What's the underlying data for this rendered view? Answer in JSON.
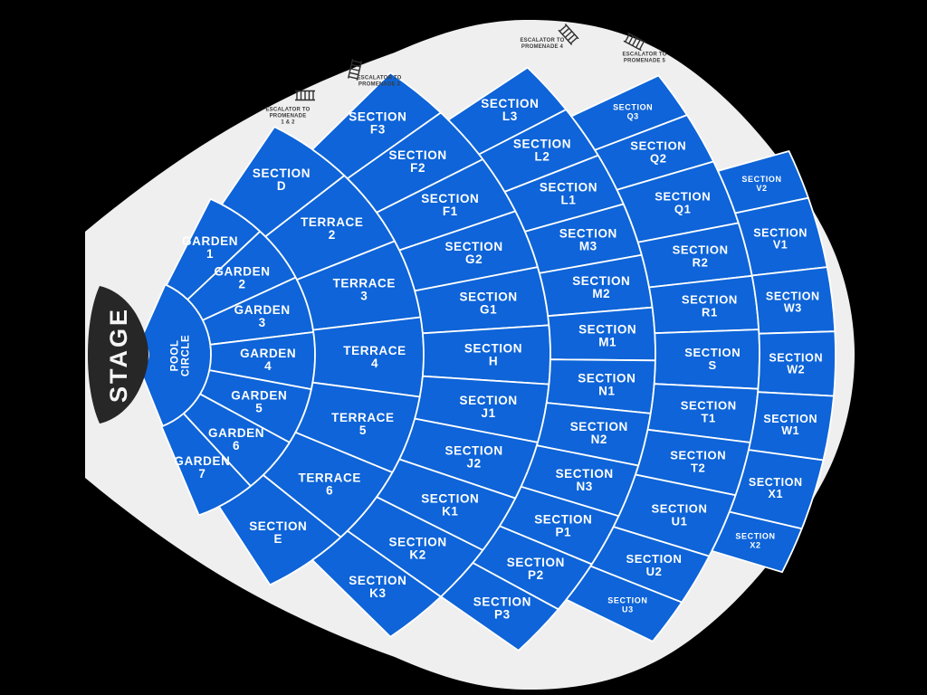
{
  "venue": {
    "stage_label": "STAGE",
    "colors": {
      "background": "#000000",
      "footprint": "#efefef",
      "section_fill": "#0e64d8",
      "section_line": "#ffffff",
      "stage_fill": "#272727",
      "stage_text": "#f5f5f5",
      "label_text": "#ffffff",
      "escalator_text": "#3c3c3c",
      "escalator_icon": "#2e2e2e"
    }
  },
  "escalators": [
    {
      "id": "promenade-1-2",
      "lines": [
        "ESCALATOR TO",
        "PROMENADE",
        "1 & 2"
      ]
    },
    {
      "id": "promenade-3",
      "lines": [
        "ESCALATOR TO",
        "PROMENADE 3"
      ]
    },
    {
      "id": "promenade-4",
      "lines": [
        "ESCALATOR TO",
        "PROMENADE 4"
      ]
    },
    {
      "id": "promenade-5",
      "lines": [
        "ESCALATOR TO",
        "PROMENADE 5"
      ]
    }
  ],
  "rings": [
    {
      "name": "pool",
      "sections": [
        {
          "id": "pool-circle",
          "lines": [
            "POOL",
            "CIRCLE"
          ]
        }
      ]
    },
    {
      "name": "garden",
      "sections": [
        {
          "id": "garden-1",
          "lines": [
            "GARDEN",
            "1"
          ]
        },
        {
          "id": "garden-2",
          "lines": [
            "GARDEN",
            "2"
          ]
        },
        {
          "id": "garden-3",
          "lines": [
            "GARDEN",
            "3"
          ]
        },
        {
          "id": "garden-4",
          "lines": [
            "GARDEN",
            "4"
          ]
        },
        {
          "id": "garden-5",
          "lines": [
            "GARDEN",
            "5"
          ]
        },
        {
          "id": "garden-6",
          "lines": [
            "GARDEN",
            "6"
          ]
        },
        {
          "id": "garden-7",
          "lines": [
            "GARDEN",
            "7"
          ]
        }
      ]
    },
    {
      "name": "terrace",
      "sections": [
        {
          "id": "section-d",
          "lines": [
            "SECTION",
            "D"
          ]
        },
        {
          "id": "terrace-2",
          "lines": [
            "TERRACE",
            "2"
          ]
        },
        {
          "id": "terrace-3",
          "lines": [
            "TERRACE",
            "3"
          ]
        },
        {
          "id": "terrace-4",
          "lines": [
            "TERRACE",
            "4"
          ]
        },
        {
          "id": "terrace-5",
          "lines": [
            "TERRACE",
            "5"
          ]
        },
        {
          "id": "terrace-6",
          "lines": [
            "TERRACE",
            "6"
          ]
        },
        {
          "id": "section-e",
          "lines": [
            "SECTION",
            "E"
          ]
        }
      ]
    },
    {
      "name": "ring-fghjk",
      "sections": [
        {
          "id": "section-f3",
          "lines": [
            "SECTION",
            "F3"
          ]
        },
        {
          "id": "section-f2",
          "lines": [
            "SECTION",
            "F2"
          ]
        },
        {
          "id": "section-f1",
          "lines": [
            "SECTION",
            "F1"
          ]
        },
        {
          "id": "section-g2",
          "lines": [
            "SECTION",
            "G2"
          ]
        },
        {
          "id": "section-g1",
          "lines": [
            "SECTION",
            "G1"
          ]
        },
        {
          "id": "section-h",
          "lines": [
            "SECTION",
            "H"
          ]
        },
        {
          "id": "section-j1",
          "lines": [
            "SECTION",
            "J1"
          ]
        },
        {
          "id": "section-j2",
          "lines": [
            "SECTION",
            "J2"
          ]
        },
        {
          "id": "section-k1",
          "lines": [
            "SECTION",
            "K1"
          ]
        },
        {
          "id": "section-k2",
          "lines": [
            "SECTION",
            "K2"
          ]
        },
        {
          "id": "section-k3",
          "lines": [
            "SECTION",
            "K3"
          ]
        }
      ]
    },
    {
      "name": "ring-lmnp",
      "sections": [
        {
          "id": "section-l3",
          "lines": [
            "SECTION",
            "L3"
          ]
        },
        {
          "id": "section-l2",
          "lines": [
            "SECTION",
            "L2"
          ]
        },
        {
          "id": "section-l1",
          "lines": [
            "SECTION",
            "L1"
          ]
        },
        {
          "id": "section-m3",
          "lines": [
            "SECTION",
            "M3"
          ]
        },
        {
          "id": "section-m2",
          "lines": [
            "SECTION",
            "M2"
          ]
        },
        {
          "id": "section-m1",
          "lines": [
            "SECTION",
            "M1"
          ]
        },
        {
          "id": "section-n1",
          "lines": [
            "SECTION",
            "N1"
          ]
        },
        {
          "id": "section-n2",
          "lines": [
            "SECTION",
            "N2"
          ]
        },
        {
          "id": "section-n3",
          "lines": [
            "SECTION",
            "N3"
          ]
        },
        {
          "id": "section-p1",
          "lines": [
            "SECTION",
            "P1"
          ]
        },
        {
          "id": "section-p2",
          "lines": [
            "SECTION",
            "P2"
          ]
        },
        {
          "id": "section-p3",
          "lines": [
            "SECTION",
            "P3"
          ]
        }
      ]
    },
    {
      "name": "ring-qrstu",
      "sections": [
        {
          "id": "section-q3",
          "lines": [
            "SECTION",
            "Q3"
          ]
        },
        {
          "id": "section-q2",
          "lines": [
            "SECTION",
            "Q2"
          ]
        },
        {
          "id": "section-q1",
          "lines": [
            "SECTION",
            "Q1"
          ]
        },
        {
          "id": "section-r2",
          "lines": [
            "SECTION",
            "R2"
          ]
        },
        {
          "id": "section-r1",
          "lines": [
            "SECTION",
            "R1"
          ]
        },
        {
          "id": "section-s",
          "lines": [
            "SECTION",
            "S"
          ]
        },
        {
          "id": "section-t1",
          "lines": [
            "SECTION",
            "T1"
          ]
        },
        {
          "id": "section-t2",
          "lines": [
            "SECTION",
            "T2"
          ]
        },
        {
          "id": "section-u1",
          "lines": [
            "SECTION",
            "U1"
          ]
        },
        {
          "id": "section-u2",
          "lines": [
            "SECTION",
            "U2"
          ]
        },
        {
          "id": "section-u3",
          "lines": [
            "SECTION",
            "U3"
          ]
        }
      ]
    },
    {
      "name": "ring-vwx",
      "sections": [
        {
          "id": "section-v2",
          "lines": [
            "SECTION",
            "V2"
          ]
        },
        {
          "id": "section-v1",
          "lines": [
            "SECTION",
            "V1"
          ]
        },
        {
          "id": "section-w3",
          "lines": [
            "SECTION",
            "W3"
          ]
        },
        {
          "id": "section-w2",
          "lines": [
            "SECTION",
            "W2"
          ]
        },
        {
          "id": "section-w1",
          "lines": [
            "SECTION",
            "W1"
          ]
        },
        {
          "id": "section-x1",
          "lines": [
            "SECTION",
            "X1"
          ]
        },
        {
          "id": "section-x2",
          "lines": [
            "SECTION",
            "X2"
          ]
        }
      ]
    }
  ]
}
